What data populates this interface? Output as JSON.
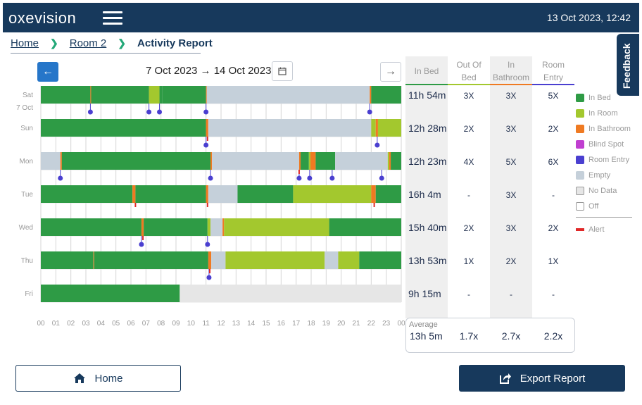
{
  "header": {
    "logo": "oxevision",
    "datetime": "13 Oct 2023, 12:42"
  },
  "breadcrumb": {
    "home": "Home",
    "room": "Room 2",
    "current": "Activity Report"
  },
  "date_range": "7 Oct 2023 → 14 Oct 2023",
  "feedback_label": "Feedback",
  "stats_headers": {
    "bed": [
      "In Bed"
    ],
    "out_of_bed": [
      "Out Of",
      "Bed"
    ],
    "bathroom": [
      "In",
      "Bathroom"
    ],
    "room_entry": [
      "Room",
      "Entry"
    ]
  },
  "rows": [
    {
      "day": "Sat",
      "date": "7 Oct",
      "bed": "11h 54m",
      "out_of_bed": "3X",
      "bathroom": "3X",
      "room_entry": "5X"
    },
    {
      "day": "Sun",
      "date": "",
      "bed": "12h 28m",
      "out_of_bed": "2X",
      "bathroom": "3X",
      "room_entry": "2X"
    },
    {
      "day": "Mon",
      "date": "",
      "bed": "12h 23m",
      "out_of_bed": "4X",
      "bathroom": "5X",
      "room_entry": "6X"
    },
    {
      "day": "Tue",
      "date": "",
      "bed": "16h 4m",
      "out_of_bed": "-",
      "bathroom": "3X",
      "room_entry": "-"
    },
    {
      "day": "Wed",
      "date": "",
      "bed": "15h 40m",
      "out_of_bed": "2X",
      "bathroom": "3X",
      "room_entry": "2X"
    },
    {
      "day": "Thu",
      "date": "",
      "bed": "13h 53m",
      "out_of_bed": "1X",
      "bathroom": "2X",
      "room_entry": "1X"
    },
    {
      "day": "Fri",
      "date": "",
      "bed": "9h 15m",
      "out_of_bed": "-",
      "bathroom": "-",
      "room_entry": "-"
    }
  ],
  "average": {
    "label": "Average",
    "bed": "13h 5m",
    "out_of_bed": "1.7x",
    "bathroom": "2.7x",
    "room_entry": "2.2x"
  },
  "legend": [
    {
      "label": "In Bed",
      "color": "#2e9b45",
      "key": "bed"
    },
    {
      "label": "In Room",
      "color": "#a3c82e",
      "key": "room"
    },
    {
      "label": "In Bathroom",
      "color": "#ef7a22",
      "key": "bath"
    },
    {
      "label": "Blind Spot",
      "color": "#c03ed0",
      "key": "blind"
    },
    {
      "label": "Room Entry",
      "color": "#4a3fd0",
      "key": "entry"
    },
    {
      "label": "Empty",
      "color": "#c5d0da",
      "key": "empty"
    },
    {
      "label": "No Data",
      "color": "#e6e6e6",
      "key": "nodata"
    },
    {
      "label": "Off",
      "color": "#ffffff",
      "key": "off"
    }
  ],
  "alert_legend": {
    "label": "Alert",
    "color": "#e02828"
  },
  "colors": {
    "bed": "#2e9b45",
    "room": "#a3c82e",
    "bath": "#ef7a22",
    "empty": "#c5d0da",
    "nodata": "#e6e6e6",
    "entry": "#4a3fd0",
    "alert": "#e02828",
    "navy": "#17395c"
  },
  "buttons": {
    "home": "Home",
    "export": "Export Report"
  },
  "chart_data": {
    "type": "timeline",
    "x_ticks": [
      "00",
      "01",
      "02",
      "03",
      "04",
      "05",
      "06",
      "07",
      "08",
      "09",
      "10",
      "11",
      "12",
      "13",
      "14",
      "15",
      "16",
      "17",
      "18",
      "19",
      "20",
      "21",
      "22",
      "23",
      "00"
    ],
    "x_unit": "hour",
    "days": [
      {
        "segments": [
          [
            0,
            3.3,
            "bed"
          ],
          [
            3.3,
            3.35,
            "bath"
          ],
          [
            3.35,
            7.2,
            "bed"
          ],
          [
            7.2,
            7.9,
            "room"
          ],
          [
            7.9,
            8.1,
            "bed"
          ],
          [
            8.1,
            11.0,
            "bed"
          ],
          [
            11.0,
            11.05,
            "bath"
          ],
          [
            11.05,
            21.9,
            "empty"
          ],
          [
            21.9,
            22.0,
            "bath"
          ],
          [
            22.0,
            24,
            "bed"
          ]
        ],
        "entries": [
          3.3,
          7.2,
          7.9,
          11.0,
          21.9
        ],
        "alerts": []
      },
      {
        "segments": [
          [
            0,
            11.0,
            "bed"
          ],
          [
            11.0,
            11.15,
            "bath"
          ],
          [
            11.15,
            22.0,
            "empty"
          ],
          [
            22.0,
            22.3,
            "room"
          ],
          [
            22.3,
            22.45,
            "bath"
          ],
          [
            22.45,
            24,
            "room"
          ]
        ],
        "entries": [
          11.0,
          22.4
        ],
        "alerts": [
          11.1
        ]
      },
      {
        "segments": [
          [
            0,
            1.3,
            "empty"
          ],
          [
            1.3,
            1.4,
            "bath"
          ],
          [
            1.4,
            11.3,
            "bed"
          ],
          [
            11.3,
            11.4,
            "bath"
          ],
          [
            11.4,
            17.2,
            "empty"
          ],
          [
            17.2,
            17.3,
            "bath"
          ],
          [
            17.3,
            17.85,
            "bed"
          ],
          [
            17.85,
            17.95,
            "room"
          ],
          [
            17.95,
            18.3,
            "bath"
          ],
          [
            18.3,
            19.6,
            "bed"
          ],
          [
            19.6,
            23.1,
            "empty"
          ],
          [
            23.1,
            23.2,
            "room"
          ],
          [
            23.2,
            23.3,
            "bath"
          ],
          [
            23.3,
            24,
            "bed"
          ]
        ],
        "entries": [
          1.3,
          11.3,
          17.2,
          17.9,
          19.4,
          22.7
        ],
        "alerts": [
          17.2
        ]
      },
      {
        "segments": [
          [
            0,
            6.1,
            "bed"
          ],
          [
            6.1,
            6.3,
            "bath"
          ],
          [
            6.3,
            11.0,
            "bed"
          ],
          [
            11.0,
            11.15,
            "bath"
          ],
          [
            11.15,
            13.1,
            "empty"
          ],
          [
            13.1,
            16.8,
            "bed"
          ],
          [
            16.8,
            22.0,
            "room"
          ],
          [
            22.0,
            22.3,
            "bath"
          ],
          [
            22.3,
            24,
            "bed"
          ]
        ],
        "entries": [],
        "alerts": [
          6.3,
          11.1,
          22.2
        ]
      },
      {
        "segments": [
          [
            0,
            6.7,
            "bed"
          ],
          [
            6.7,
            6.85,
            "bath"
          ],
          [
            6.85,
            11.1,
            "bed"
          ],
          [
            11.1,
            11.3,
            "room"
          ],
          [
            11.3,
            12.1,
            "empty"
          ],
          [
            12.1,
            12.2,
            "bath"
          ],
          [
            12.2,
            19.2,
            "room"
          ],
          [
            19.2,
            24,
            "bed"
          ]
        ],
        "entries": [
          6.7,
          11.1
        ],
        "alerts": [
          6.8
        ]
      },
      {
        "segments": [
          [
            0,
            3.5,
            "bed"
          ],
          [
            3.5,
            3.55,
            "bath"
          ],
          [
            3.55,
            11.15,
            "bed"
          ],
          [
            11.15,
            11.35,
            "bath"
          ],
          [
            11.35,
            12.3,
            "empty"
          ],
          [
            12.3,
            18.9,
            "room"
          ],
          [
            18.9,
            19.8,
            "empty"
          ],
          [
            19.8,
            21.2,
            "room"
          ],
          [
            21.2,
            24,
            "bed"
          ]
        ],
        "entries": [
          11.2
        ],
        "alerts": [
          11.25
        ]
      },
      {
        "segments": [
          [
            0,
            9.25,
            "bed"
          ],
          [
            9.25,
            24,
            "nodata"
          ]
        ],
        "entries": [],
        "alerts": []
      }
    ]
  }
}
